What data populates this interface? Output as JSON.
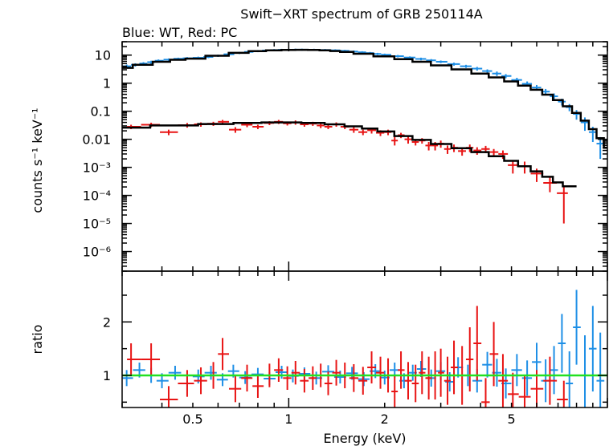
{
  "chart_data": {
    "type": "scatter",
    "title": "Swift−XRT spectrum of GRB 250114A",
    "subtitle": "Blue: WT, Red: PC",
    "xlabel": "Energy (keV)",
    "x_scale": "log",
    "xlim": [
      0.3,
      10
    ],
    "x_ticks": [
      {
        "value": 0.5,
        "label": "0.5"
      },
      {
        "value": 1,
        "label": "1"
      },
      {
        "value": 2,
        "label": "2"
      },
      {
        "value": 5,
        "label": "5"
      }
    ],
    "panels": [
      {
        "id": "spectrum",
        "ylabel": "counts s⁻¹ keV⁻¹",
        "y_scale": "log",
        "ylim": [
          2e-07,
          30
        ],
        "y_ticks": [
          {
            "value": 10,
            "label": "10"
          },
          {
            "value": 1,
            "label": "1"
          },
          {
            "value": 0.1,
            "label": "0.1"
          },
          {
            "value": 0.01,
            "label": "0.01"
          },
          {
            "value": 0.001,
            "label": "10⁻³"
          },
          {
            "value": 0.0001,
            "label": "10⁻⁴"
          },
          {
            "value": 1e-05,
            "label": "10⁻⁵"
          },
          {
            "value": 1e-06,
            "label": "10⁻⁶"
          }
        ],
        "series": [
          {
            "color": "#1e8fe6",
            "x": [
              0.31,
              0.33,
              0.35,
              0.37,
              0.39,
              0.42,
              0.45,
              0.48,
              0.52,
              0.56,
              0.6,
              0.65,
              0.7,
              0.75,
              0.8,
              0.85,
              0.9,
              0.95,
              1.0,
              1.05,
              1.1,
              1.2,
              1.3,
              1.4,
              1.5,
              1.6,
              1.7,
              1.8,
              1.9,
              2.0,
              2.2,
              2.4,
              2.6,
              2.8,
              3.0,
              3.3,
              3.6,
              3.9,
              4.2,
              4.5,
              4.8,
              5.2,
              5.6,
              6.0,
              6.4,
              6.8,
              7.2,
              7.6,
              8.0,
              8.5,
              9.0,
              9.5
            ],
            "y": [
              4.0,
              4.5,
              5.0,
              5.6,
              6.3,
              6.9,
              7.4,
              7.7,
              8.0,
              8.6,
              9.5,
              10.7,
              12.0,
              13.0,
              13.9,
              14.6,
              15.1,
              15.4,
              15.5,
              15.6,
              15.6,
              15.5,
              15.2,
              14.8,
              14.2,
              13.4,
              12.6,
              11.8,
              11.0,
              10.3,
              9.2,
              8.2,
              7.3,
              6.5,
              5.8,
              4.8,
              4.0,
              3.3,
              2.7,
              2.2,
              1.8,
              1.3,
              0.95,
              0.7,
              0.5,
              0.34,
              0.22,
              0.14,
              0.08,
              0.04,
              0.018,
              0.007
            ],
            "err": [
              0.6,
              0.6,
              0.6,
              0.7,
              0.7,
              0.7,
              0.7,
              0.8,
              0.8,
              0.8,
              0.9,
              1.0,
              1.1,
              1.2,
              1.2,
              1.3,
              1.3,
              1.3,
              1.3,
              1.3,
              1.3,
              1.3,
              1.3,
              1.3,
              1.2,
              1.2,
              1.1,
              1.1,
              1.0,
              1.0,
              0.9,
              0.8,
              0.8,
              0.7,
              0.6,
              0.6,
              0.5,
              0.5,
              0.4,
              0.4,
              0.3,
              0.25,
              0.2,
              0.16,
              0.12,
              0.09,
              0.06,
              0.04,
              0.03,
              0.02,
              0.01,
              0.005
            ]
          },
          {
            "color": "#e81414",
            "x": [
              0.32,
              0.37,
              0.42,
              0.48,
              0.53,
              0.58,
              0.62,
              0.68,
              0.74,
              0.8,
              0.87,
              0.93,
              0.99,
              1.05,
              1.12,
              1.19,
              1.26,
              1.33,
              1.41,
              1.5,
              1.6,
              1.71,
              1.82,
              1.94,
              2.05,
              2.15,
              2.25,
              2.37,
              2.5,
              2.62,
              2.75,
              2.88,
              3.0,
              3.15,
              3.3,
              3.5,
              3.7,
              3.9,
              4.15,
              4.4,
              4.7,
              5.05,
              5.5,
              6.0,
              6.6,
              7.3
            ],
            "y": [
              0.028,
              0.033,
              0.018,
              0.032,
              0.034,
              0.036,
              0.042,
              0.022,
              0.033,
              0.028,
              0.038,
              0.042,
              0.037,
              0.04,
              0.034,
              0.036,
              0.031,
              0.028,
              0.034,
              0.028,
              0.022,
              0.018,
              0.021,
              0.017,
              0.018,
              0.009,
              0.014,
              0.01,
              0.008,
              0.009,
              0.006,
              0.006,
              0.007,
              0.0045,
              0.005,
              0.0038,
              0.005,
              0.004,
              0.0045,
              0.0035,
              0.003,
              0.0012,
              0.0011,
              0.0006,
              0.00028,
              0.00012
            ],
            "err": [
              0.005,
              0.006,
              0.004,
              0.006,
              0.006,
              0.006,
              0.007,
              0.005,
              0.006,
              0.005,
              0.006,
              0.007,
              0.006,
              0.007,
              0.006,
              0.006,
              0.006,
              0.005,
              0.006,
              0.005,
              0.005,
              0.004,
              0.005,
              0.004,
              0.004,
              0.003,
              0.003,
              0.003,
              0.002,
              0.002,
              0.002,
              0.002,
              0.002,
              0.0015,
              0.0015,
              0.0012,
              0.0015,
              0.0012,
              0.0013,
              0.001,
              0.001,
              0.0006,
              0.0005,
              0.0003,
              0.00015,
              0.00011
            ]
          }
        ],
        "model": {
          "color": "#000000",
          "x": [
            0.3,
            0.35,
            0.4,
            0.45,
            0.5,
            0.6,
            0.7,
            0.8,
            0.9,
            1.0,
            1.1,
            1.2,
            1.3,
            1.4,
            1.5,
            1.7,
            2.0,
            2.3,
            2.6,
            3.0,
            3.5,
            4.0,
            4.5,
            5.0,
            5.5,
            6.0,
            6.5,
            7.0,
            7.5,
            8.0,
            8.5,
            9.0,
            9.5,
            10.0
          ],
          "wt": [
            3.5,
            4.5,
            5.8,
            6.8,
            7.5,
            9.5,
            12.0,
            13.8,
            14.8,
            15.3,
            15.4,
            15.2,
            14.8,
            14.0,
            13.0,
            11.2,
            9.0,
            7.2,
            5.8,
            4.3,
            3.1,
            2.2,
            1.6,
            1.15,
            0.82,
            0.58,
            0.39,
            0.25,
            0.15,
            0.087,
            0.046,
            0.023,
            0.011,
            0.005
          ],
          "pc_x": [
            0.3,
            0.45,
            0.6,
            0.75,
            0.9,
            1.0,
            1.2,
            1.4,
            1.6,
            1.8,
            2.0,
            2.3,
            2.6,
            3.0,
            3.5,
            4.0,
            4.5,
            5.0,
            5.5,
            6.0,
            6.5,
            7.0,
            7.5,
            8.0
          ],
          "pc": [
            0.026,
            0.031,
            0.035,
            0.038,
            0.04,
            0.04,
            0.038,
            0.034,
            0.029,
            0.024,
            0.019,
            0.013,
            0.0095,
            0.0068,
            0.0048,
            0.0035,
            0.0025,
            0.0017,
            0.0011,
            0.00072,
            0.00046,
            0.00029,
            0.00021,
            0.00021
          ]
        }
      },
      {
        "id": "ratio",
        "ylabel": "ratio",
        "y_scale": "linear",
        "ylim": [
          0.4,
          2.95
        ],
        "y_ticks": [
          {
            "value": 1,
            "label": "1"
          },
          {
            "value": 2,
            "label": "2"
          }
        ],
        "reference_line": {
          "value": 1.0,
          "color": "#22e022"
        },
        "series": [
          {
            "color": "#1e8fe6",
            "x": [
              0.31,
              0.34,
              0.37,
              0.4,
              0.44,
              0.48,
              0.52,
              0.57,
              0.62,
              0.67,
              0.73,
              0.8,
              0.87,
              0.95,
              1.03,
              1.12,
              1.22,
              1.33,
              1.45,
              1.58,
              1.72,
              1.87,
              2.0,
              2.15,
              2.3,
              2.45,
              2.6,
              2.8,
              3.0,
              3.2,
              3.4,
              3.65,
              3.9,
              4.2,
              4.5,
              4.8,
              5.2,
              5.6,
              6.0,
              6.4,
              6.8,
              7.2,
              7.6,
              8.0,
              8.5,
              9.0,
              9.5
            ],
            "y": [
              0.95,
              1.1,
              1.0,
              0.9,
              1.05,
              0.85,
              0.98,
              1.05,
              0.92,
              1.08,
              0.96,
              1.02,
              0.94,
              1.06,
              0.99,
              1.03,
              0.95,
              1.07,
              0.97,
              1.04,
              0.93,
              1.08,
              0.96,
              1.1,
              0.9,
              1.05,
              1.12,
              0.95,
              1.08,
              0.88,
              1.15,
              1.0,
              0.9,
              1.2,
              1.05,
              0.85,
              1.1,
              0.95,
              1.25,
              0.9,
              1.1,
              1.6,
              0.85,
              1.9,
              1.0,
              1.5,
              0.9
            ],
            "err": [
              0.15,
              0.14,
              0.14,
              0.14,
              0.13,
              0.13,
              0.13,
              0.13,
              0.12,
              0.12,
              0.12,
              0.12,
              0.12,
              0.12,
              0.12,
              0.12,
              0.12,
              0.12,
              0.12,
              0.12,
              0.13,
              0.13,
              0.13,
              0.14,
              0.14,
              0.15,
              0.15,
              0.16,
              0.17,
              0.18,
              0.19,
              0.2,
              0.22,
              0.24,
              0.26,
              0.28,
              0.3,
              0.33,
              0.36,
              0.4,
              0.45,
              0.55,
              0.6,
              0.7,
              0.75,
              0.8,
              0.9
            ]
          },
          {
            "color": "#e81414",
            "x": [
              0.32,
              0.37,
              0.42,
              0.48,
              0.53,
              0.58,
              0.62,
              0.68,
              0.74,
              0.8,
              0.87,
              0.93,
              0.99,
              1.05,
              1.12,
              1.19,
              1.26,
              1.33,
              1.41,
              1.5,
              1.6,
              1.71,
              1.82,
              1.94,
              2.05,
              2.15,
              2.25,
              2.37,
              2.5,
              2.62,
              2.75,
              2.88,
              3.0,
              3.15,
              3.3,
              3.5,
              3.7,
              3.9,
              4.15,
              4.4,
              4.7,
              5.05,
              5.5,
              6.0,
              6.6,
              7.3
            ],
            "y": [
              1.3,
              1.3,
              0.55,
              0.85,
              0.9,
              1.0,
              1.4,
              0.75,
              0.95,
              0.8,
              1.0,
              1.1,
              0.95,
              1.05,
              0.9,
              0.95,
              1.0,
              0.85,
              1.05,
              1.0,
              0.95,
              0.9,
              1.15,
              1.05,
              1.0,
              0.7,
              1.1,
              0.9,
              0.85,
              1.05,
              0.95,
              1.0,
              1.05,
              0.9,
              1.15,
              1.0,
              1.3,
              1.6,
              0.5,
              1.4,
              0.9,
              0.65,
              0.6,
              0.75,
              0.9,
              0.55
            ],
            "err": [
              0.3,
              0.3,
              0.25,
              0.25,
              0.25,
              0.25,
              0.3,
              0.25,
              0.25,
              0.22,
              0.22,
              0.22,
              0.22,
              0.22,
              0.22,
              0.22,
              0.22,
              0.22,
              0.24,
              0.24,
              0.26,
              0.26,
              0.3,
              0.3,
              0.32,
              0.3,
              0.35,
              0.35,
              0.35,
              0.4,
              0.4,
              0.45,
              0.45,
              0.45,
              0.5,
              0.55,
              0.6,
              0.7,
              0.45,
              0.6,
              0.5,
              0.4,
              0.4,
              0.35,
              0.45,
              0.35
            ]
          }
        ]
      }
    ]
  }
}
